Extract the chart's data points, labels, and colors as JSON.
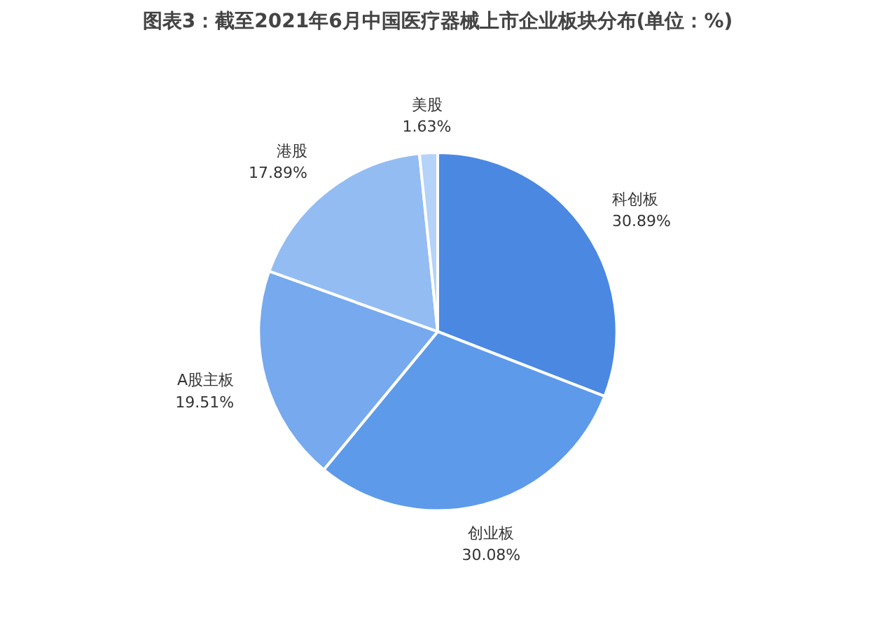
{
  "chart_data": {
    "type": "pie",
    "title": "图表3：截至2021年6月中国医疗器械上市企业板块分布(单位：%)",
    "categories": [
      "科创板",
      "创业板",
      "A股主板",
      "港股",
      "美股"
    ],
    "values": [
      30.89,
      30.08,
      19.51,
      17.89,
      1.63
    ],
    "value_labels": [
      "30.89%",
      "30.08%",
      "19.51%",
      "17.89%",
      "1.63%"
    ],
    "colors": [
      "#4a88e2",
      "#5d9aea",
      "#76a9ee",
      "#93bcf3",
      "#b5d2f8"
    ]
  }
}
